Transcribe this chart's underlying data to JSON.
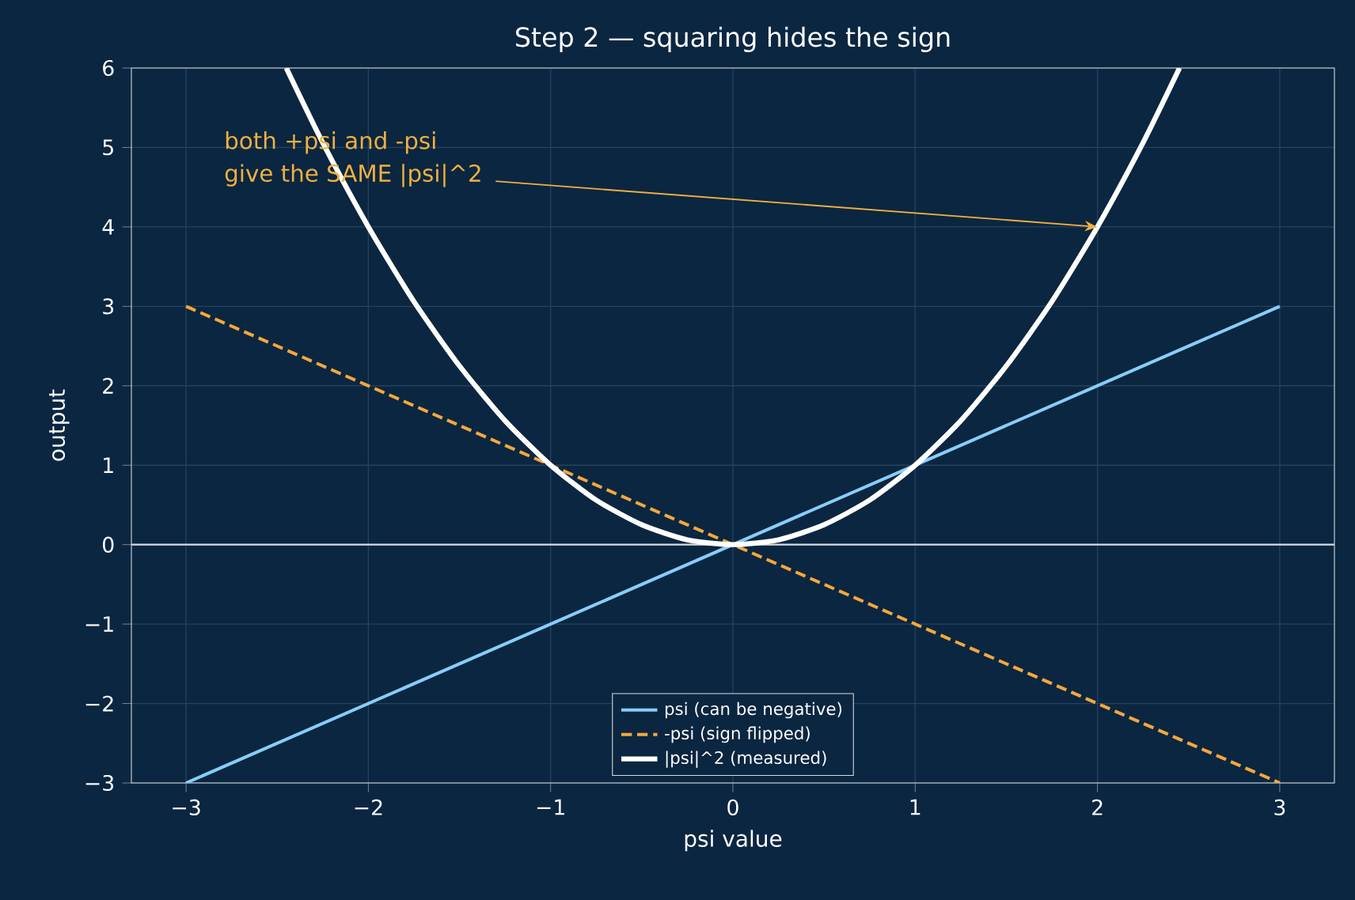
{
  "chart_data": {
    "type": "line",
    "title": "Step 2 — squaring hides the sign",
    "xlabel": "psi value",
    "ylabel": "output",
    "xlim": [
      -3.3,
      3.3
    ],
    "ylim": [
      -3,
      6
    ],
    "xticks": [
      {
        "value": -3,
        "label": "−3"
      },
      {
        "value": -2,
        "label": "−2"
      },
      {
        "value": -1,
        "label": "−1"
      },
      0,
      1,
      2,
      3
    ],
    "yticks": [
      {
        "value": -3,
        "label": "−3"
      },
      {
        "value": -2,
        "label": "−2"
      },
      {
        "value": -1,
        "label": "−1"
      },
      0,
      1,
      2,
      3,
      4,
      5,
      6
    ],
    "grid": true,
    "legend": "bottom",
    "ref_lines": [
      {
        "axis": "y",
        "value": 0,
        "color": "#d8dde3"
      }
    ],
    "annotations": [
      "both +psi and -psi",
      {
        "text": "give the SAME |psi|^2",
        "x": 2,
        "y": 4
      }
    ],
    "series": [
      {
        "name": "psi (can be negative)",
        "color": "#87cefa",
        "x": [
          -3,
          3
        ],
        "values": [
          -3,
          3
        ]
      },
      {
        "name": "-psi (sign flipped)",
        "color": "#f5a83c",
        "line_style": "dashed",
        "x": [
          -3,
          3
        ],
        "values": [
          3,
          -3
        ]
      },
      {
        "name": "|psi|^2 (measured)",
        "color": "#ffffff",
        "x": [
          -2.45,
          -2.25,
          -2,
          -1.75,
          -1.5,
          -1.25,
          -1,
          -0.75,
          -0.5,
          -0.25,
          0,
          0.25,
          0.5,
          0.75,
          1,
          1.25,
          1.5,
          1.75,
          2,
          2.25,
          2.45
        ],
        "values": [
          6.0,
          5.06,
          4,
          3.06,
          2.25,
          1.56,
          1,
          0.56,
          0.25,
          0.06,
          0,
          0.06,
          0.25,
          0.56,
          1,
          1.56,
          2.25,
          3.06,
          4,
          5.06,
          6.0
        ]
      }
    ]
  }
}
